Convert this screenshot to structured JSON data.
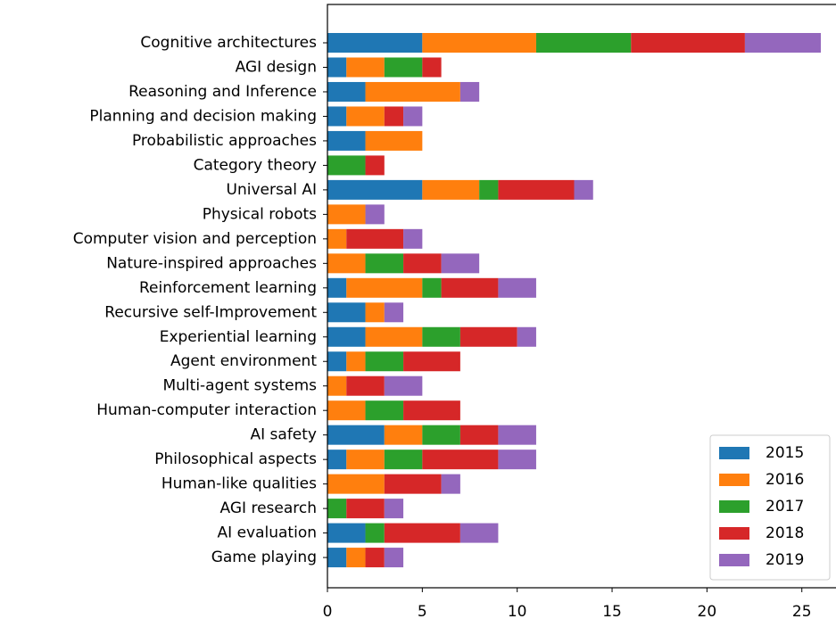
{
  "chart_data": {
    "type": "barh_stacked",
    "categories": [
      "Cognitive architectures",
      "AGI design",
      "Reasoning and Inference",
      "Planning and decision making",
      "Probabilistic approaches",
      "Category theory",
      "Universal AI",
      "Physical robots",
      "Computer vision and perception",
      "Nature-inspired approaches",
      "Reinforcement learning",
      "Recursive self-Improvement",
      "Experiential learning",
      "Agent environment",
      "Multi-agent systems",
      "Human-computer interaction",
      "AI safety",
      "Philosophical aspects",
      "Human-like qualities",
      "AGI research",
      "AI evaluation",
      "Game playing"
    ],
    "series": [
      {
        "name": "2015",
        "color": "#1f77b4",
        "values": [
          5,
          1,
          2,
          1,
          2,
          0,
          5,
          0,
          0,
          0,
          1,
          2,
          2,
          1,
          0,
          0,
          3,
          1,
          0,
          0,
          2,
          1
        ]
      },
      {
        "name": "2016",
        "color": "#ff7f0e",
        "values": [
          6,
          2,
          5,
          2,
          3,
          0,
          3,
          2,
          1,
          2,
          4,
          1,
          3,
          1,
          1,
          2,
          2,
          2,
          3,
          0,
          0,
          1
        ]
      },
      {
        "name": "2017",
        "color": "#2ca02c",
        "values": [
          5,
          2,
          0,
          0,
          0,
          2,
          1,
          0,
          0,
          2,
          1,
          0,
          2,
          2,
          0,
          2,
          2,
          2,
          0,
          1,
          1,
          0
        ]
      },
      {
        "name": "2018",
        "color": "#d62728",
        "values": [
          6,
          1,
          0,
          1,
          0,
          1,
          4,
          0,
          3,
          2,
          3,
          0,
          3,
          3,
          2,
          3,
          2,
          4,
          3,
          2,
          4,
          1
        ]
      },
      {
        "name": "2019",
        "color": "#9467bd",
        "values": [
          4,
          0,
          1,
          1,
          0,
          0,
          1,
          1,
          1,
          2,
          2,
          1,
          1,
          0,
          2,
          0,
          2,
          2,
          1,
          1,
          2,
          1
        ]
      }
    ],
    "xlim": [
      0,
      26.8
    ],
    "xticks": [
      0,
      5,
      10,
      15,
      20,
      25
    ],
    "legend": "lower right"
  }
}
